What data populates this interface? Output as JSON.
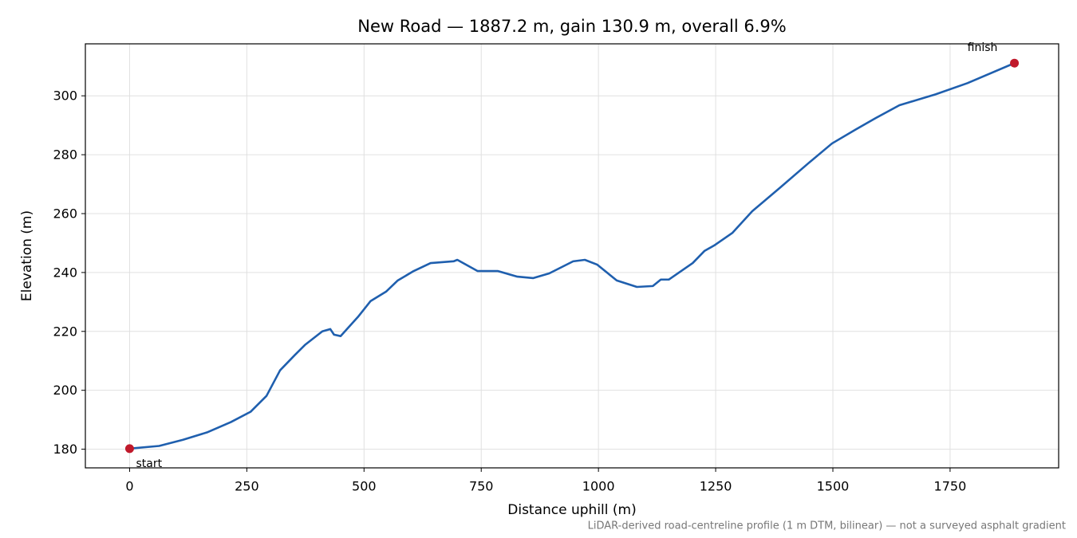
{
  "chart_data": {
    "type": "line",
    "title": "New Road — 1887.2 m, gain 130.9 m, overall 6.9%",
    "xlabel": "Distance uphill (m)",
    "ylabel": "Elevation (m)",
    "footnote": "LiDAR-derived road-centreline profile (1 m DTM, bilinear) — not a surveyed asphalt gradient",
    "x": [
      0,
      63,
      114,
      165,
      216,
      258,
      292,
      321,
      352,
      374,
      411,
      428,
      436,
      450,
      487,
      514,
      547,
      572,
      606,
      642,
      691,
      699,
      742,
      785,
      827,
      861,
      895,
      946,
      971,
      997,
      1039,
      1082,
      1116,
      1133,
      1150,
      1201,
      1226,
      1247,
      1286,
      1328,
      1388,
      1447,
      1498,
      1549,
      1591,
      1642,
      1719,
      1787,
      1887.2
    ],
    "series": [
      {
        "name": "New Road",
        "color": "#1f5fae",
        "values": [
          180.2,
          181.1,
          183.2,
          185.7,
          189.2,
          192.7,
          198.1,
          206.8,
          211.9,
          215.4,
          220,
          220.8,
          218.9,
          218.4,
          224.9,
          230.3,
          233.5,
          237.3,
          240.5,
          243.2,
          243.8,
          244.3,
          240.5,
          240.5,
          238.6,
          238.1,
          239.7,
          243.8,
          244.3,
          242.7,
          237.3,
          235.1,
          235.4,
          237.6,
          237.6,
          243.2,
          247.3,
          249.2,
          253.5,
          260.8,
          268.9,
          277,
          283.8,
          288.6,
          292.4,
          296.8,
          300.5,
          304.3,
          311.1
        ]
      }
    ],
    "markers": {
      "color": "#c0192b",
      "x": [
        0,
        1887.2
      ],
      "values": [
        180.2,
        311.1
      ],
      "labels": [
        "start",
        "finish"
      ]
    },
    "xlim": [
      -94.36,
      1981.56
    ],
    "ylim": [
      173.66,
      317.65
    ],
    "xticks": [
      0,
      250,
      500,
      750,
      1000,
      1250,
      1500,
      1750
    ],
    "yticks": [
      180,
      200,
      220,
      240,
      260,
      280,
      300
    ],
    "grid": true
  }
}
